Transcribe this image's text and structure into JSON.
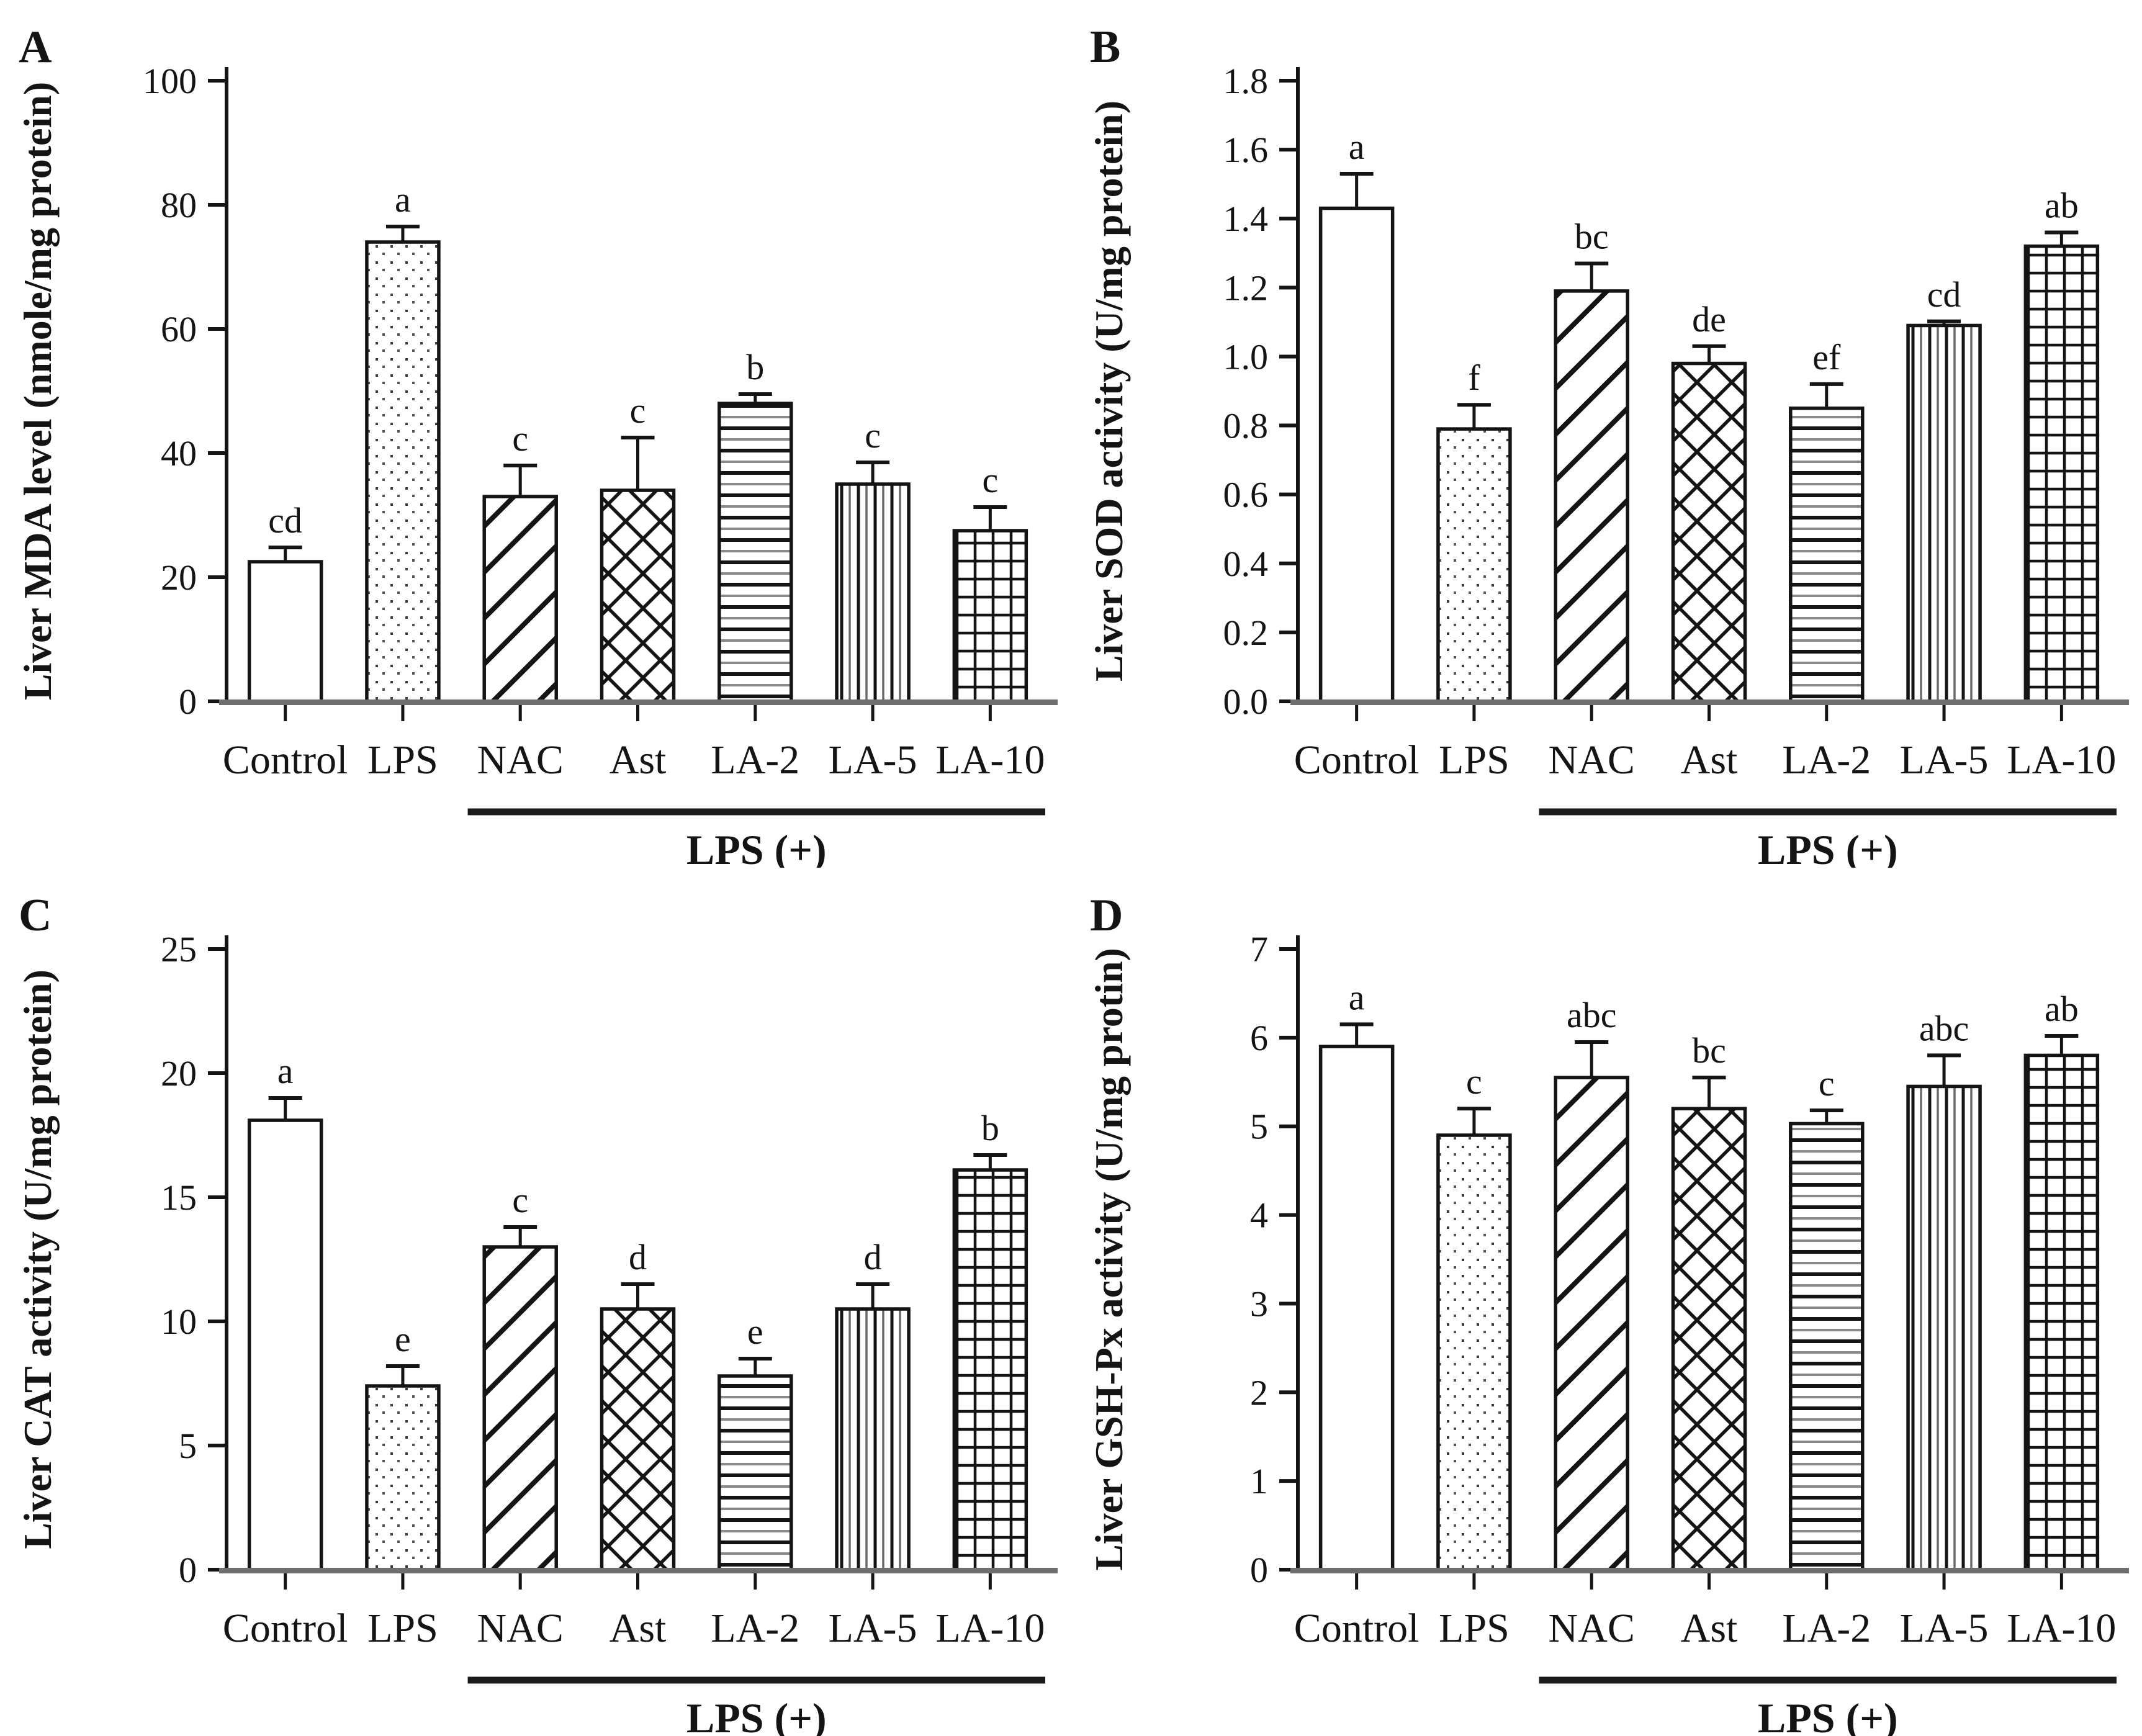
{
  "figure": {
    "background": "#ffffff",
    "panels": [
      "A",
      "B",
      "C",
      "D"
    ],
    "description_visible_text_only": true
  },
  "colors": {
    "ink": "#141414",
    "bar_fill": "#ffffff",
    "baseline_gray": "#6e6e6e",
    "dot_gray": "#3a3a3a"
  },
  "categories": [
    "Control",
    "LPS",
    "NAC",
    "Ast",
    "LA-2",
    "LA-5",
    "LA-10"
  ],
  "group_label": "LPS (+)",
  "group_members": [
    "NAC",
    "Ast",
    "LA-2",
    "LA-5",
    "LA-10"
  ],
  "bar_patterns": {
    "Control": "plain",
    "LPS": "dots",
    "NAC": "diagonal-hatch",
    "Ast": "cross-hatch",
    "LA-2": "horizontal-lines",
    "LA-5": "vertical-lines",
    "LA-10": "grid"
  },
  "chart_data": [
    {
      "type": "bar",
      "panel_label": "A",
      "ylabel": "Liver MDA level (nmole/mg protein)",
      "xlabel": "",
      "ylim": [
        0,
        100
      ],
      "ytick_step": 20,
      "ytick_labels": [
        "0",
        "20",
        "40",
        "60",
        "80",
        "100"
      ],
      "categories": [
        "Control",
        "LPS",
        "NAC",
        "Ast",
        "LA-2",
        "LA-5",
        "LA-10"
      ],
      "values": [
        22.5,
        74,
        33,
        34,
        48,
        35,
        27.5
      ],
      "errors": [
        2.3,
        2.5,
        5,
        8.5,
        1.5,
        3.5,
        3.8
      ],
      "sig_letters": [
        "cd",
        "a",
        "c",
        "c",
        "b",
        "c",
        "c"
      ],
      "group_label": "LPS (+)",
      "grid": false,
      "legend": null
    },
    {
      "type": "bar",
      "panel_label": "B",
      "ylabel": "Liver SOD activity (U/mg protein)",
      "xlabel": "",
      "ylim": [
        0,
        1.8
      ],
      "ytick_step": 0.2,
      "ytick_labels": [
        "0.0",
        "0.2",
        "0.4",
        "0.6",
        "0.8",
        "1.0",
        "1.2",
        "1.4",
        "1.6",
        "1.8"
      ],
      "categories": [
        "Control",
        "LPS",
        "NAC",
        "Ast",
        "LA-2",
        "LA-5",
        "LA-10"
      ],
      "values": [
        1.43,
        0.79,
        1.19,
        0.98,
        0.85,
        1.09,
        1.32
      ],
      "errors": [
        0.1,
        0.07,
        0.08,
        0.05,
        0.07,
        0.012,
        0.04
      ],
      "sig_letters": [
        "a",
        "f",
        "bc",
        "de",
        "ef",
        "cd",
        "ab"
      ],
      "group_label": "LPS (+)",
      "grid": false,
      "legend": null
    },
    {
      "type": "bar",
      "panel_label": "C",
      "ylabel": "Liver CAT activity (U/mg protein)",
      "xlabel": "",
      "ylim": [
        0,
        25
      ],
      "ytick_step": 5,
      "ytick_labels": [
        "0",
        "5",
        "10",
        "15",
        "20",
        "25"
      ],
      "categories": [
        "Control",
        "LPS",
        "NAC",
        "Ast",
        "LA-2",
        "LA-5",
        "LA-10"
      ],
      "values": [
        18.1,
        7.4,
        13.0,
        10.5,
        7.8,
        10.5,
        16.1
      ],
      "errors": [
        0.9,
        0.8,
        0.8,
        1.0,
        0.7,
        1.0,
        0.6
      ],
      "sig_letters": [
        "a",
        "e",
        "c",
        "d",
        "e",
        "d",
        "b"
      ],
      "group_label": "LPS (+)",
      "grid": false,
      "legend": null
    },
    {
      "type": "bar",
      "panel_label": "D",
      "ylabel": "Liver GSH-Px activity (U/mg protin)",
      "xlabel": "",
      "ylim": [
        0,
        7
      ],
      "ytick_step": 1,
      "ytick_labels": [
        "0",
        "1",
        "2",
        "3",
        "4",
        "5",
        "6",
        "7"
      ],
      "categories": [
        "Control",
        "LPS",
        "NAC",
        "Ast",
        "LA-2",
        "LA-5",
        "LA-10"
      ],
      "values": [
        5.9,
        4.9,
        5.55,
        5.2,
        5.03,
        5.45,
        5.8
      ],
      "errors": [
        0.25,
        0.3,
        0.4,
        0.35,
        0.15,
        0.35,
        0.22
      ],
      "sig_letters": [
        "a",
        "c",
        "abc",
        "bc",
        "c",
        "abc",
        "ab"
      ],
      "group_label": "LPS (+)",
      "grid": false,
      "legend": null
    }
  ]
}
